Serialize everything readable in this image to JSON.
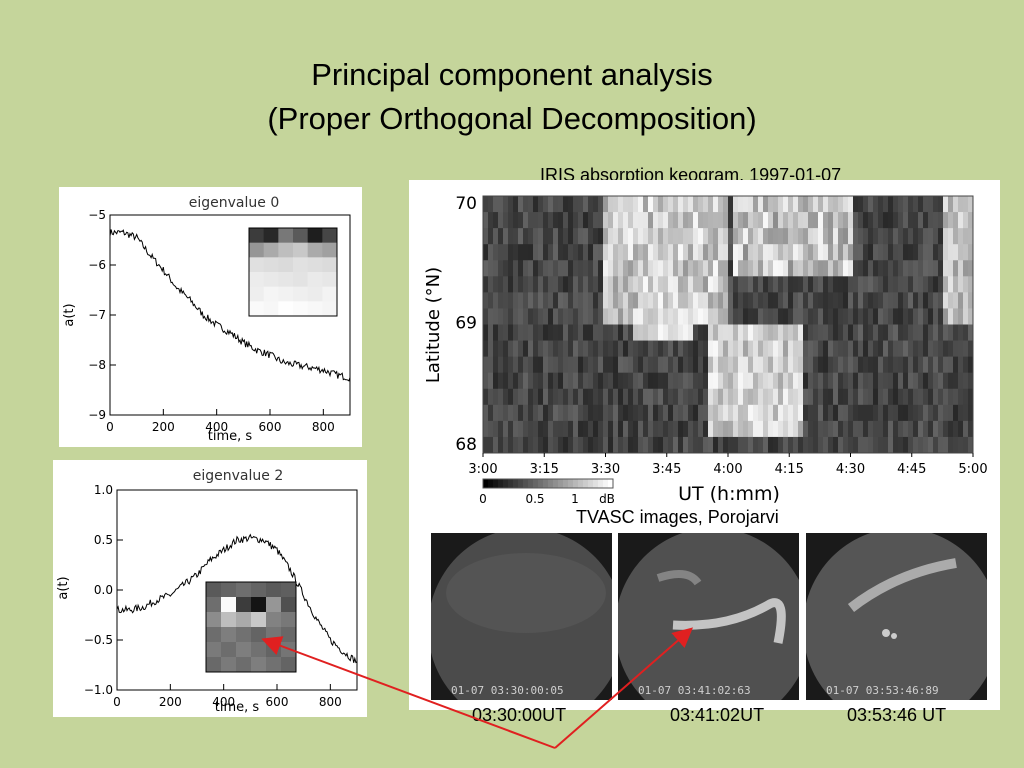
{
  "slide": {
    "title_line1": "Principal component analysis",
    "title_line2": "(Proper Orthogonal Decomposition)",
    "background": "#c5d59b"
  },
  "eigen_plots": [
    {
      "title": "eigenvalue   0",
      "ylabel": "a(t)",
      "xlabel": "time, s",
      "xticks": [
        "0",
        "200",
        "400",
        "600",
        "800"
      ],
      "yticks": [
        "−5",
        "−6",
        "−7",
        "−8",
        "−9"
      ]
    },
    {
      "title": "eigenvalue   2",
      "ylabel": "a(t)",
      "xlabel": "time, s",
      "xticks": [
        "0",
        "200",
        "400",
        "600",
        "800"
      ],
      "yticks": [
        "1.0",
        "0.5",
        "0.0",
        "−0.5",
        "−1.0"
      ]
    }
  ],
  "keogram": {
    "caption": "IRIS absorption keogram, 1997-01-07",
    "ylabel": "Latitude (°N)",
    "xlabel": "UT (h:mm)",
    "yticks": [
      "70",
      "69",
      "68"
    ],
    "xticks": [
      "3:00",
      "3:15",
      "3:30",
      "3:45",
      "4:00",
      "4:15",
      "4:30",
      "4:45",
      "5:00"
    ],
    "colorbar_ticks": [
      "0",
      "0.5",
      "1",
      "dB"
    ]
  },
  "tvasc": {
    "caption": "TVASC images, Porojarvi",
    "frames": [
      {
        "stamp": "01-07 03:30:00:05",
        "time": "03:30:00UT"
      },
      {
        "stamp": "01-07 03:41:02:63",
        "time": "03:41:02UT"
      },
      {
        "stamp": "01-07 03:53:46:89",
        "time": "03:53:46 UT"
      }
    ]
  },
  "annotation": {
    "arrow_color": "#e02020"
  },
  "chart_data": [
    {
      "type": "line",
      "title": "eigenvalue   0",
      "xlabel": "time, s",
      "ylabel": "a(t)",
      "xlim": [
        0,
        900
      ],
      "ylim": [
        -9,
        -5
      ],
      "series": [
        {
          "x": [
            0,
            50,
            100,
            150,
            200,
            250,
            300,
            350,
            400,
            450,
            500,
            550,
            600,
            650,
            700,
            750,
            800,
            850,
            900
          ],
          "values": [
            -5.35,
            -5.35,
            -5.45,
            -5.8,
            -6.1,
            -6.45,
            -6.7,
            -7.0,
            -7.2,
            -7.35,
            -7.55,
            -7.7,
            -7.8,
            -7.95,
            -8.0,
            -8.05,
            -8.1,
            -8.2,
            -8.25
          ]
        }
      ]
    },
    {
      "type": "line",
      "title": "eigenvalue   2",
      "xlabel": "time, s",
      "ylabel": "a(t)",
      "xlim": [
        0,
        900
      ],
      "ylim": [
        -1.0,
        1.0
      ],
      "series": [
        {
          "x": [
            0,
            50,
            100,
            150,
            200,
            250,
            300,
            350,
            400,
            450,
            500,
            550,
            600,
            650,
            700,
            750,
            800,
            850,
            900
          ],
          "values": [
            -0.2,
            -0.2,
            -0.17,
            -0.1,
            -0.05,
            0.05,
            0.15,
            0.3,
            0.4,
            0.5,
            0.52,
            0.5,
            0.4,
            0.2,
            -0.05,
            -0.3,
            -0.5,
            -0.62,
            -0.72
          ]
        }
      ]
    }
  ]
}
